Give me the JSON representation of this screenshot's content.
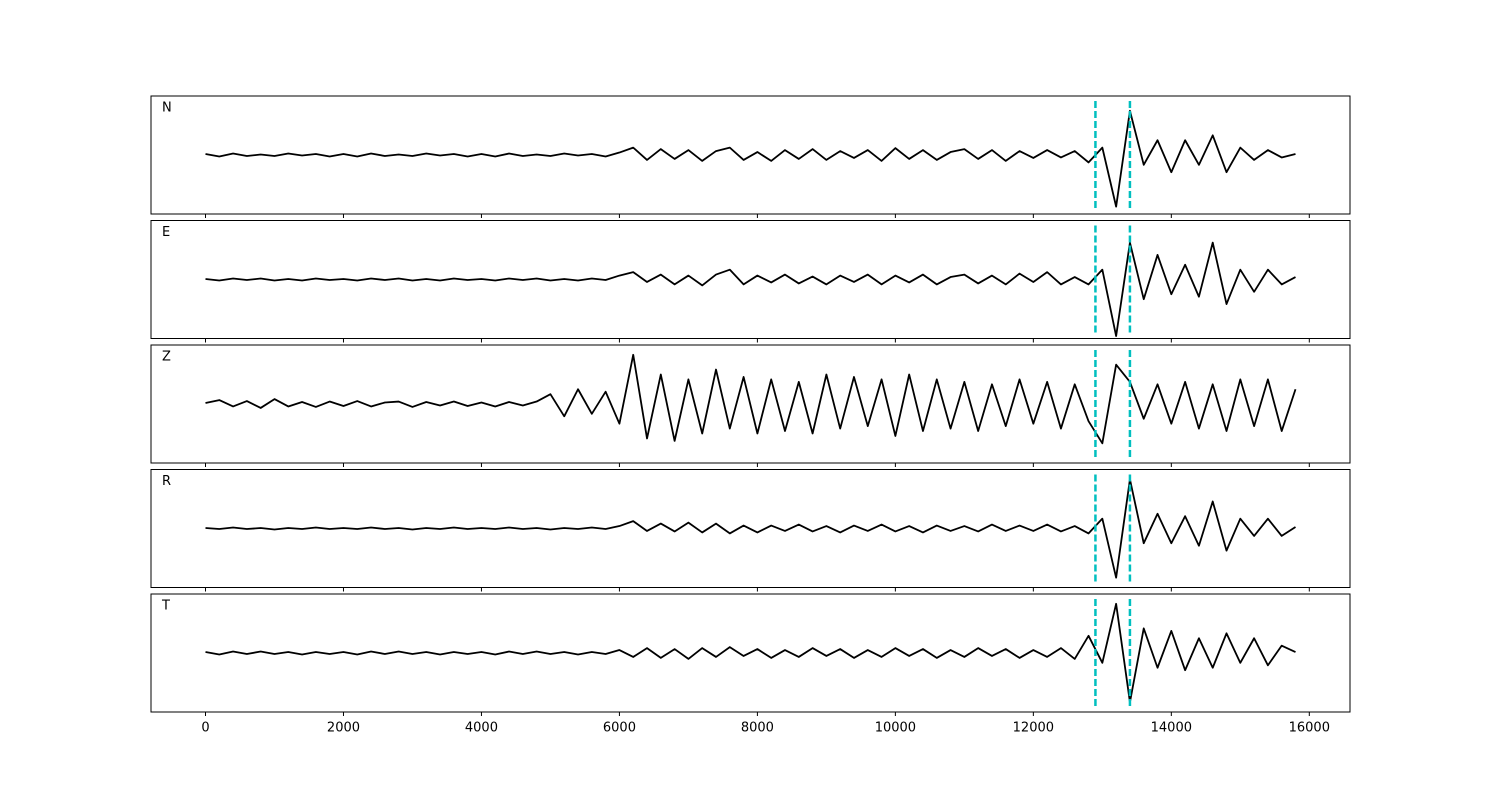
{
  "chart_data": {
    "type": "line",
    "stacked": true,
    "x": [
      0,
      200,
      400,
      600,
      800,
      1000,
      1200,
      1400,
      1600,
      1800,
      2000,
      2200,
      2400,
      2600,
      2800,
      3000,
      3200,
      3400,
      3600,
      3800,
      4000,
      4200,
      4400,
      4600,
      4800,
      5000,
      5200,
      5400,
      5600,
      5800,
      6000,
      6200,
      6400,
      6600,
      6800,
      7000,
      7200,
      7400,
      7600,
      7800,
      8000,
      8200,
      8400,
      8600,
      8800,
      9000,
      9200,
      9400,
      9600,
      9800,
      10000,
      10200,
      10400,
      10600,
      10800,
      11000,
      11200,
      11400,
      11600,
      11800,
      12000,
      12200,
      12400,
      12600,
      12800,
      13000,
      13200,
      13400,
      13600,
      13800,
      14000,
      14200,
      14400,
      14600,
      14800,
      15000,
      15200,
      15400,
      15600,
      15800
    ],
    "xlim": [
      -790,
      16590
    ],
    "xticks": [
      0,
      2000,
      4000,
      6000,
      8000,
      10000,
      12000,
      14000,
      16000
    ],
    "markers": {
      "x": [
        12900,
        13400
      ],
      "color": "#00bfbf"
    },
    "series": [
      {
        "name": "N",
        "color": "#000000",
        "ylim": [
          -1.2,
          1.2
        ],
        "values": [
          0.02,
          -0.03,
          0.03,
          -0.02,
          0.01,
          -0.02,
          0.03,
          -0.01,
          0.02,
          -0.03,
          0.02,
          -0.03,
          0.03,
          -0.02,
          0.01,
          -0.02,
          0.03,
          -0.01,
          0.02,
          -0.03,
          0.02,
          -0.03,
          0.03,
          -0.02,
          0.01,
          -0.02,
          0.03,
          -0.01,
          0.02,
          -0.03,
          0.05,
          0.15,
          -0.1,
          0.12,
          -0.08,
          0.1,
          -0.12,
          0.08,
          0.15,
          -0.1,
          0.06,
          -0.12,
          0.1,
          -0.08,
          0.12,
          -0.1,
          0.08,
          -0.06,
          0.1,
          -0.12,
          0.14,
          -0.08,
          0.1,
          -0.1,
          0.06,
          0.12,
          -0.08,
          0.1,
          -0.12,
          0.08,
          -0.06,
          0.1,
          -0.05,
          0.08,
          -0.15,
          0.15,
          -1.05,
          0.9,
          -0.2,
          0.3,
          -0.35,
          0.3,
          -0.2,
          0.4,
          -0.35,
          0.15,
          -0.1,
          0.1,
          -0.05,
          0.02
        ]
      },
      {
        "name": "E",
        "color": "#000000",
        "ylim": [
          -1.2,
          1.2
        ],
        "values": [
          0.01,
          -0.02,
          0.02,
          -0.01,
          0.02,
          -0.02,
          0.01,
          -0.02,
          0.02,
          -0.01,
          0.01,
          -0.02,
          0.02,
          -0.01,
          0.02,
          -0.02,
          0.01,
          -0.02,
          0.02,
          -0.01,
          0.01,
          -0.02,
          0.02,
          -0.01,
          0.02,
          -0.02,
          0.01,
          -0.02,
          0.02,
          -0.01,
          0.08,
          0.15,
          -0.05,
          0.1,
          -0.1,
          0.08,
          -0.12,
          0.1,
          0.2,
          -0.1,
          0.08,
          -0.06,
          0.1,
          -0.08,
          0.06,
          -0.1,
          0.08,
          -0.05,
          0.1,
          -0.1,
          0.08,
          -0.06,
          0.1,
          -0.1,
          0.05,
          0.1,
          -0.08,
          0.08,
          -0.1,
          0.12,
          -0.05,
          0.15,
          -0.1,
          0.05,
          -0.1,
          0.2,
          -1.15,
          0.75,
          -0.4,
          0.5,
          -0.3,
          0.3,
          -0.35,
          0.75,
          -0.5,
          0.2,
          -0.25,
          0.2,
          -0.1,
          0.05
        ]
      },
      {
        "name": "Z",
        "color": "#000000",
        "ylim": [
          -1.2,
          1.2
        ],
        "values": [
          0.02,
          0.08,
          -0.05,
          0.06,
          -0.08,
          0.1,
          -0.05,
          0.04,
          -0.06,
          0.05,
          -0.04,
          0.06,
          -0.05,
          0.03,
          0.05,
          -0.06,
          0.04,
          -0.03,
          0.05,
          -0.04,
          0.03,
          -0.05,
          0.04,
          -0.03,
          0.05,
          0.2,
          -0.25,
          0.3,
          -0.2,
          0.25,
          -0.4,
          1.0,
          -0.7,
          0.6,
          -0.75,
          0.5,
          -0.6,
          0.7,
          -0.5,
          0.55,
          -0.6,
          0.5,
          -0.55,
          0.45,
          -0.6,
          0.6,
          -0.5,
          0.55,
          -0.45,
          0.5,
          -0.65,
          0.6,
          -0.55,
          0.5,
          -0.5,
          0.45,
          -0.55,
          0.4,
          -0.45,
          0.5,
          -0.4,
          0.45,
          -0.5,
          0.4,
          -0.35,
          -0.8,
          0.8,
          0.45,
          -0.3,
          0.4,
          -0.4,
          0.45,
          -0.5,
          0.4,
          -0.55,
          0.5,
          -0.45,
          0.5,
          -0.55,
          0.3
        ]
      },
      {
        "name": "R",
        "color": "#000000",
        "ylim": [
          -1.2,
          1.2
        ],
        "values": [
          0.01,
          -0.01,
          0.02,
          -0.01,
          0.01,
          -0.02,
          0.01,
          -0.01,
          0.02,
          -0.01,
          0.01,
          -0.01,
          0.02,
          -0.01,
          0.01,
          -0.02,
          0.01,
          -0.01,
          0.02,
          -0.01,
          0.01,
          -0.01,
          0.02,
          -0.01,
          0.01,
          -0.02,
          0.01,
          -0.01,
          0.02,
          -0.01,
          0.05,
          0.15,
          -0.05,
          0.1,
          -0.06,
          0.12,
          -0.08,
          0.1,
          -0.1,
          0.06,
          -0.08,
          0.06,
          -0.05,
          0.08,
          -0.06,
          0.05,
          -0.08,
          0.06,
          -0.05,
          0.08,
          -0.06,
          0.05,
          -0.08,
          0.06,
          -0.05,
          0.05,
          -0.06,
          0.08,
          -0.05,
          0.06,
          -0.05,
          0.08,
          -0.06,
          0.05,
          -0.1,
          0.2,
          -1.0,
          1.0,
          -0.3,
          0.3,
          -0.3,
          0.25,
          -0.35,
          0.55,
          -0.45,
          0.2,
          -0.15,
          0.2,
          -0.15,
          0.03
        ]
      },
      {
        "name": "T",
        "color": "#000000",
        "ylim": [
          -1.2,
          1.2
        ],
        "values": [
          0.02,
          -0.03,
          0.03,
          -0.02,
          0.03,
          -0.02,
          0.02,
          -0.03,
          0.02,
          -0.02,
          0.02,
          -0.03,
          0.03,
          -0.02,
          0.03,
          -0.02,
          0.02,
          -0.03,
          0.02,
          -0.02,
          0.02,
          -0.03,
          0.03,
          -0.02,
          0.03,
          -0.02,
          0.02,
          -0.03,
          0.02,
          -0.02,
          0.06,
          -0.08,
          0.1,
          -0.1,
          0.08,
          -0.12,
          0.1,
          -0.08,
          0.12,
          -0.06,
          0.08,
          -0.1,
          0.06,
          -0.08,
          0.1,
          -0.06,
          0.08,
          -0.1,
          0.06,
          -0.08,
          0.1,
          -0.06,
          0.08,
          -0.1,
          0.06,
          -0.08,
          0.1,
          -0.06,
          0.08,
          -0.1,
          0.06,
          -0.08,
          0.1,
          -0.12,
          0.35,
          -0.2,
          1.0,
          -1.0,
          0.5,
          -0.3,
          0.45,
          -0.35,
          0.3,
          -0.3,
          0.4,
          -0.2,
          0.3,
          -0.25,
          0.15,
          0.02
        ]
      }
    ]
  }
}
